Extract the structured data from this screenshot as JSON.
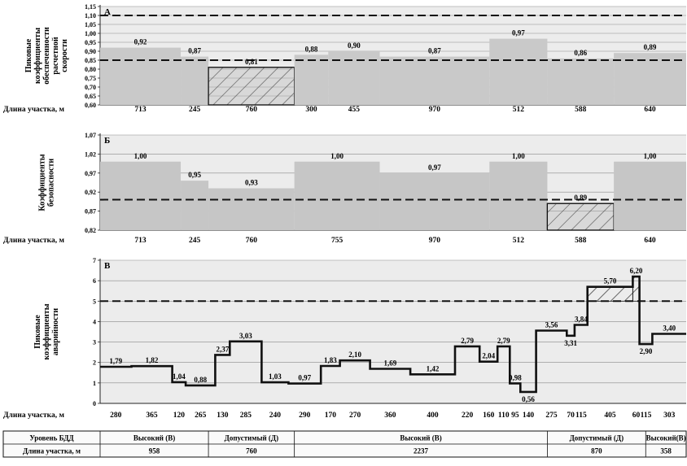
{
  "chart_data": [
    {
      "type": "step",
      "panel_label": "А",
      "ylabel": "Пиковые коэффициенты обеспеченности расчетной скорости",
      "x_row_label": "Длина участка, м",
      "ylim": [
        0.6,
        1.15
      ],
      "y_ticks": [
        "0,60",
        "0,65",
        "0,70",
        "0,75",
        "0,80",
        "0,85",
        "0,90",
        "0,95",
        "1,00",
        "1,05",
        "1,10",
        "1,15"
      ],
      "thresholds": [
        1.1,
        0.85
      ],
      "lengths": [
        713,
        245,
        760,
        300,
        455,
        970,
        512,
        588,
        640
      ],
      "values": [
        0.92,
        0.87,
        0.81,
        0.88,
        0.9,
        0.87,
        0.97,
        0.86,
        0.89
      ],
      "value_labels": [
        "0,92",
        "0,87",
        "0,81",
        "0,88",
        "0,90",
        "0,87",
        "0,97",
        "0,86",
        "0,89"
      ],
      "length_labels": [
        "713",
        "245",
        "760",
        "300",
        "455",
        "970",
        "512",
        "588",
        "640"
      ],
      "hatched_segments": [
        2
      ]
    },
    {
      "type": "step",
      "panel_label": "Б",
      "ylabel": "Коэффициенты безопасности",
      "x_row_label": "Длина участка, м",
      "ylim": [
        0.82,
        1.07
      ],
      "y_ticks": [
        "0,82",
        "0,87",
        "0,92",
        "0,97",
        "1,02",
        "1,07"
      ],
      "thresholds": [
        0.9
      ],
      "lengths": [
        713,
        245,
        760,
        755,
        970,
        512,
        588,
        640
      ],
      "values": [
        1.0,
        0.95,
        0.93,
        1.0,
        0.97,
        1.0,
        0.89,
        1.0
      ],
      "value_labels": [
        "1,00",
        "0,95",
        "0,93",
        "1,00",
        "0,97",
        "1,00",
        "0,89",
        "1,00"
      ],
      "length_labels": [
        "713",
        "245",
        "760",
        "755",
        "970",
        "512",
        "588",
        "640"
      ],
      "hatched_segments": [
        6
      ]
    },
    {
      "type": "step",
      "panel_label": "В",
      "ylabel": "Пиковые коэффициенты аварийности",
      "x_row_label": "Длина участка, м",
      "ylim": [
        0,
        7
      ],
      "y_ticks": [
        "0",
        "1",
        "2",
        "3",
        "4",
        "5",
        "6",
        "7"
      ],
      "thresholds": [
        5
      ],
      "lengths": [
        280,
        365,
        120,
        265,
        130,
        285,
        240,
        290,
        170,
        270,
        360,
        400,
        220,
        160,
        110,
        95,
        140,
        275,
        70,
        115,
        405,
        60,
        115,
        303
      ],
      "values": [
        1.79,
        1.82,
        1.04,
        0.88,
        2.37,
        3.03,
        1.03,
        0.97,
        1.83,
        2.1,
        1.69,
        1.42,
        2.79,
        2.04,
        2.79,
        0.98,
        0.56,
        3.56,
        3.31,
        3.84,
        5.7,
        6.2,
        2.9,
        3.4
      ],
      "value_labels": [
        "1,79",
        "1,82",
        "1,04",
        "0,88",
        "2,37",
        "3,03",
        "1,03",
        "0,97",
        "1,83",
        "2,10",
        "1,69",
        "1,42",
        "2,79",
        "2,04",
        "2,79",
        "0,98",
        "0,56",
        "3,56",
        "3,31",
        "3,84",
        "5,70",
        "6,20",
        "2,90",
        "3,40"
      ],
      "length_labels": [
        "280",
        "365",
        "120",
        "265",
        "130",
        "285",
        "240",
        "290",
        "170",
        "270",
        "360",
        "400",
        "220",
        "160",
        "110",
        "95",
        "140",
        "275",
        "70",
        "115",
        "405",
        "60",
        "115",
        "303"
      ],
      "hatched_segments": [
        20,
        21
      ]
    },
    {
      "type": "table",
      "rows": [
        {
          "header": "Уровень БДД",
          "cells": [
            "Высокий (В)",
            "Допустимый (Д)",
            "Высокий (В)",
            "Допустимый (Д)",
            "Высокий(В)"
          ]
        },
        {
          "header": "Длина участка, м",
          "cells": [
            "958",
            "760",
            "2237",
            "870",
            "358"
          ]
        }
      ],
      "spans": [
        958,
        760,
        2237,
        870,
        358
      ]
    }
  ]
}
